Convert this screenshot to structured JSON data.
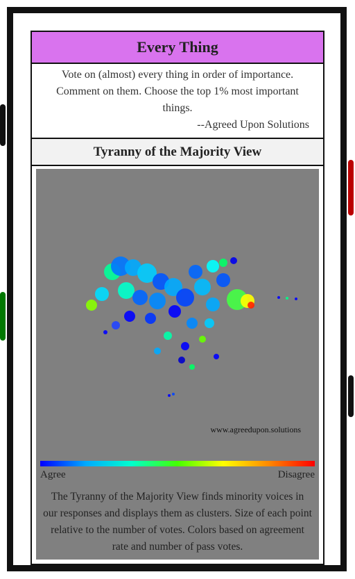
{
  "header": {
    "title": "Every Thing",
    "description": "Vote on (almost) every thing in order of importance. Comment on them. Choose the top 1% most important things.",
    "signature": "--Agreed Upon Solutions"
  },
  "section": {
    "title": "Tyranny of the Majority View",
    "url": "www.agreedupon.solutions",
    "scale_left": "Agree",
    "scale_right": "Disagree",
    "note": "The Tyranny of the Majority View finds minority voices in our responses and displays them as clusters. Size of each point relative to the number of votes. Colors based on agreement rate and number of pass votes."
  }
}
